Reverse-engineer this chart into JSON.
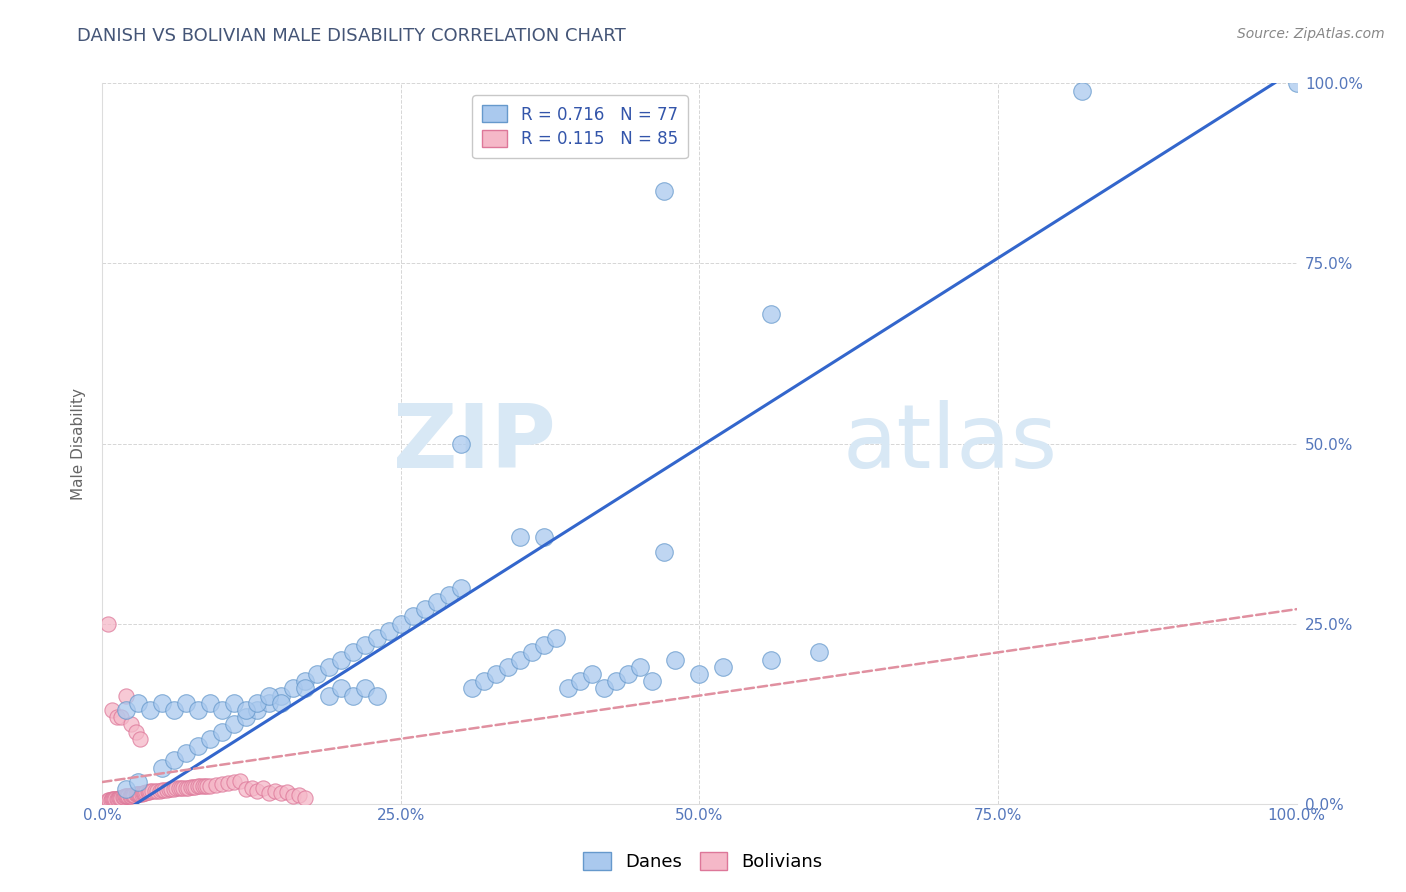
{
  "title": "DANISH VS BOLIVIAN MALE DISABILITY CORRELATION CHART",
  "source": "Source: ZipAtlas.com",
  "ylabel": "Male Disability",
  "xlim": [
    0,
    1.0
  ],
  "ylim": [
    0,
    1.0
  ],
  "xtick_vals": [
    0.0,
    0.25,
    0.5,
    0.75,
    1.0
  ],
  "xtick_labels": [
    "0.0%",
    "25.0%",
    "50.0%",
    "75.0%",
    "100.0%"
  ],
  "ytick_vals": [
    0.0,
    0.25,
    0.5,
    0.75,
    1.0
  ],
  "ytick_labels": [
    "0.0%",
    "25.0%",
    "50.0%",
    "75.0%",
    "100.0%"
  ],
  "danes_color": "#aac9ee",
  "danes_edge_color": "#6699cc",
  "bolivians_color": "#f5b8c8",
  "bolivians_edge_color": "#dd7799",
  "regression_dane_color": "#3366cc",
  "regression_bolivian_color": "#e090a0",
  "R_danes": 0.716,
  "N_danes": 77,
  "R_bolivians": 0.115,
  "N_bolivians": 85,
  "tick_color": "#5577bb",
  "background_color": "#ffffff",
  "grid_color": "#cccccc",
  "title_color": "#445577",
  "source_color": "#888888",
  "watermark": "ZIPatlas",
  "watermark_color": "#d8e8f5",
  "legend_label_color": "#3355aa",
  "danes_label": "Danes",
  "bolivians_label": "Bolivians",
  "dane_reg_slope": 1.05,
  "dane_reg_intercept": -0.03,
  "boli_reg_slope": 0.24,
  "boli_reg_intercept": 0.03,
  "danes_scatter_x": [
    0.02,
    0.03,
    0.05,
    0.06,
    0.07,
    0.08,
    0.09,
    0.1,
    0.11,
    0.12,
    0.13,
    0.14,
    0.15,
    0.16,
    0.17,
    0.18,
    0.19,
    0.2,
    0.21,
    0.22,
    0.23,
    0.24,
    0.25,
    0.26,
    0.27,
    0.28,
    0.29,
    0.3,
    0.31,
    0.32,
    0.33,
    0.34,
    0.35,
    0.36,
    0.37,
    0.38,
    0.39,
    0.4,
    0.41,
    0.42,
    0.43,
    0.44,
    0.45,
    0.46,
    0.48,
    0.5,
    0.52,
    0.56,
    0.6,
    0.02,
    0.03,
    0.04,
    0.05,
    0.06,
    0.07,
    0.08,
    0.09,
    0.1,
    0.11,
    0.12,
    0.13,
    0.14,
    0.15,
    0.17,
    0.19,
    0.2,
    0.21,
    0.22,
    0.23,
    0.35,
    0.37,
    0.47,
    0.47,
    0.56,
    0.82,
    1.0,
    0.3
  ],
  "danes_scatter_y": [
    0.02,
    0.03,
    0.05,
    0.06,
    0.07,
    0.08,
    0.09,
    0.1,
    0.11,
    0.12,
    0.13,
    0.14,
    0.15,
    0.16,
    0.17,
    0.18,
    0.19,
    0.2,
    0.21,
    0.22,
    0.23,
    0.24,
    0.25,
    0.26,
    0.27,
    0.28,
    0.29,
    0.3,
    0.16,
    0.17,
    0.18,
    0.19,
    0.2,
    0.21,
    0.22,
    0.23,
    0.16,
    0.17,
    0.18,
    0.16,
    0.17,
    0.18,
    0.19,
    0.17,
    0.2,
    0.18,
    0.19,
    0.2,
    0.21,
    0.13,
    0.14,
    0.13,
    0.14,
    0.13,
    0.14,
    0.13,
    0.14,
    0.13,
    0.14,
    0.13,
    0.14,
    0.15,
    0.14,
    0.16,
    0.15,
    0.16,
    0.15,
    0.16,
    0.15,
    0.37,
    0.37,
    0.35,
    0.85,
    0.68,
    0.99,
    1.0,
    0.5
  ],
  "boli_scatter_x": [
    0.005,
    0.006,
    0.007,
    0.008,
    0.009,
    0.01,
    0.011,
    0.012,
    0.013,
    0.014,
    0.015,
    0.016,
    0.017,
    0.018,
    0.019,
    0.02,
    0.021,
    0.022,
    0.023,
    0.024,
    0.025,
    0.026,
    0.027,
    0.028,
    0.029,
    0.03,
    0.031,
    0.032,
    0.033,
    0.034,
    0.035,
    0.036,
    0.037,
    0.038,
    0.039,
    0.04,
    0.042,
    0.044,
    0.046,
    0.048,
    0.05,
    0.052,
    0.054,
    0.056,
    0.058,
    0.06,
    0.062,
    0.064,
    0.066,
    0.068,
    0.07,
    0.072,
    0.074,
    0.076,
    0.078,
    0.08,
    0.082,
    0.084,
    0.086,
    0.088,
    0.09,
    0.095,
    0.1,
    0.105,
    0.11,
    0.115,
    0.12,
    0.125,
    0.13,
    0.135,
    0.14,
    0.145,
    0.15,
    0.155,
    0.16,
    0.165,
    0.17,
    0.005,
    0.008,
    0.012,
    0.016,
    0.02,
    0.024,
    0.028,
    0.032
  ],
  "boli_scatter_y": [
    0.005,
    0.005,
    0.005,
    0.006,
    0.006,
    0.006,
    0.007,
    0.007,
    0.007,
    0.008,
    0.008,
    0.008,
    0.009,
    0.009,
    0.01,
    0.01,
    0.01,
    0.011,
    0.011,
    0.011,
    0.012,
    0.012,
    0.012,
    0.013,
    0.013,
    0.013,
    0.014,
    0.014,
    0.014,
    0.015,
    0.015,
    0.015,
    0.016,
    0.016,
    0.016,
    0.017,
    0.017,
    0.017,
    0.018,
    0.018,
    0.019,
    0.019,
    0.019,
    0.02,
    0.02,
    0.02,
    0.021,
    0.021,
    0.021,
    0.022,
    0.022,
    0.022,
    0.023,
    0.023,
    0.023,
    0.024,
    0.024,
    0.024,
    0.025,
    0.025,
    0.025,
    0.026,
    0.027,
    0.028,
    0.03,
    0.031,
    0.02,
    0.022,
    0.018,
    0.022,
    0.015,
    0.018,
    0.015,
    0.016,
    0.01,
    0.012,
    0.008,
    0.25,
    0.13,
    0.12,
    0.12,
    0.15,
    0.11,
    0.1,
    0.09
  ]
}
